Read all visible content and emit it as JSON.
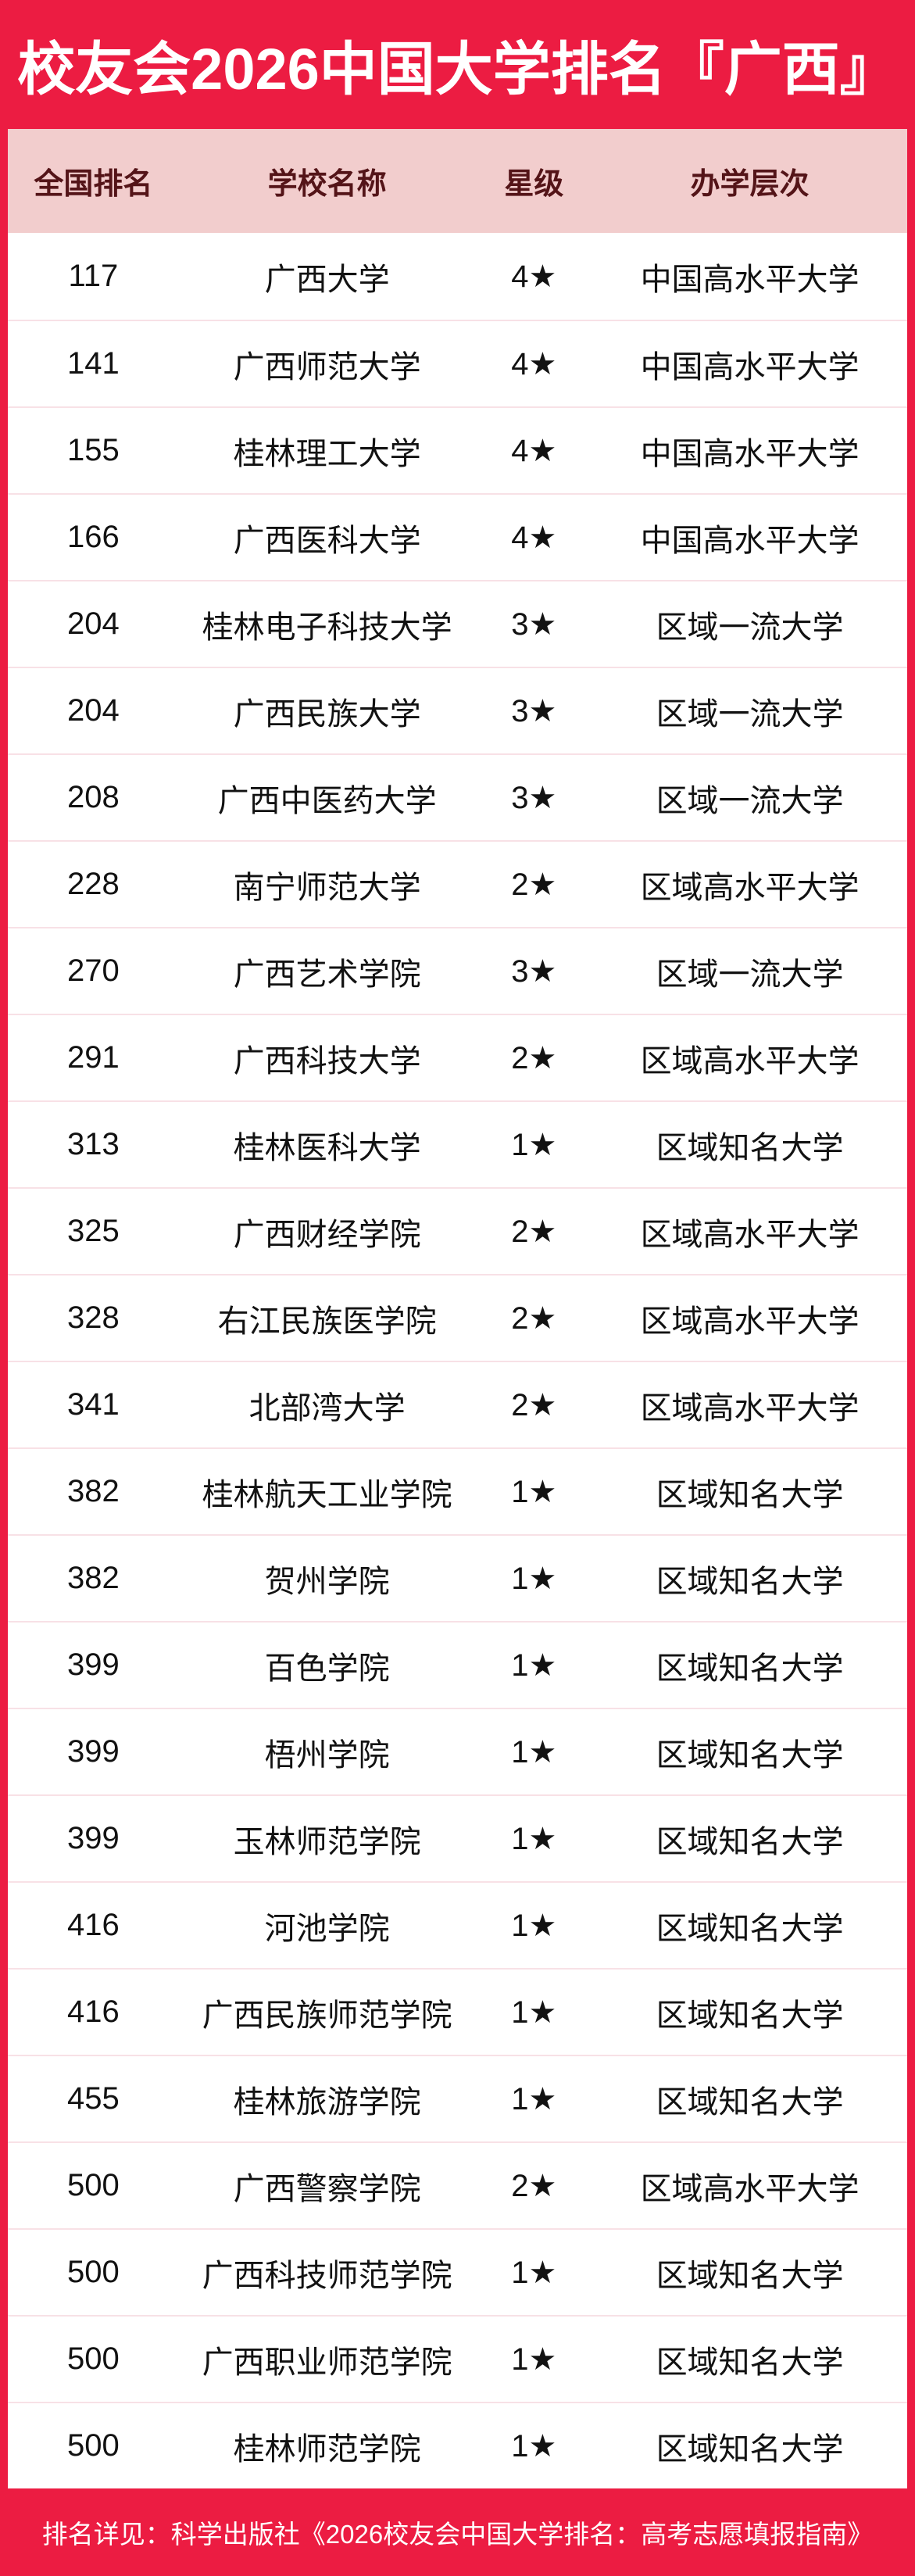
{
  "title": "校友会2026中国大学排名『广西』",
  "colors": {
    "red": "#EC1C42",
    "header_bg": "#F2CDCD",
    "header_text": "#541418",
    "divider": "#F8E1E6",
    "body_text": "#121212"
  },
  "table": {
    "columns": [
      "全国排名",
      "学校名称",
      "星级",
      "办学层次"
    ],
    "rows": [
      {
        "rank": "117",
        "name": "广西大学",
        "stars": "4★",
        "level": "中国高水平大学"
      },
      {
        "rank": "141",
        "name": "广西师范大学",
        "stars": "4★",
        "level": "中国高水平大学"
      },
      {
        "rank": "155",
        "name": "桂林理工大学",
        "stars": "4★",
        "level": "中国高水平大学"
      },
      {
        "rank": "166",
        "name": "广西医科大学",
        "stars": "4★",
        "level": "中国高水平大学"
      },
      {
        "rank": "204",
        "name": "桂林电子科技大学",
        "stars": "3★",
        "level": "区域一流大学"
      },
      {
        "rank": "204",
        "name": "广西民族大学",
        "stars": "3★",
        "level": "区域一流大学"
      },
      {
        "rank": "208",
        "name": "广西中医药大学",
        "stars": "3★",
        "level": "区域一流大学"
      },
      {
        "rank": "228",
        "name": "南宁师范大学",
        "stars": "2★",
        "level": "区域高水平大学"
      },
      {
        "rank": "270",
        "name": "广西艺术学院",
        "stars": "3★",
        "level": "区域一流大学"
      },
      {
        "rank": "291",
        "name": "广西科技大学",
        "stars": "2★",
        "level": "区域高水平大学"
      },
      {
        "rank": "313",
        "name": "桂林医科大学",
        "stars": "1★",
        "level": "区域知名大学"
      },
      {
        "rank": "325",
        "name": "广西财经学院",
        "stars": "2★",
        "level": "区域高水平大学"
      },
      {
        "rank": "328",
        "name": "右江民族医学院",
        "stars": "2★",
        "level": "区域高水平大学"
      },
      {
        "rank": "341",
        "name": "北部湾大学",
        "stars": "2★",
        "level": "区域高水平大学"
      },
      {
        "rank": "382",
        "name": "桂林航天工业学院",
        "stars": "1★",
        "level": "区域知名大学"
      },
      {
        "rank": "382",
        "name": "贺州学院",
        "stars": "1★",
        "level": "区域知名大学"
      },
      {
        "rank": "399",
        "name": "百色学院",
        "stars": "1★",
        "level": "区域知名大学"
      },
      {
        "rank": "399",
        "name": "梧州学院",
        "stars": "1★",
        "level": "区域知名大学"
      },
      {
        "rank": "399",
        "name": "玉林师范学院",
        "stars": "1★",
        "level": "区域知名大学"
      },
      {
        "rank": "416",
        "name": "河池学院",
        "stars": "1★",
        "level": "区域知名大学"
      },
      {
        "rank": "416",
        "name": "广西民族师范学院",
        "stars": "1★",
        "level": "区域知名大学"
      },
      {
        "rank": "455",
        "name": "桂林旅游学院",
        "stars": "1★",
        "level": "区域知名大学"
      },
      {
        "rank": "500",
        "name": "广西警察学院",
        "stars": "2★",
        "level": "区域高水平大学"
      },
      {
        "rank": "500",
        "name": "广西科技师范学院",
        "stars": "1★",
        "level": "区域知名大学"
      },
      {
        "rank": "500",
        "name": "广西职业师范学院",
        "stars": "1★",
        "level": "区域知名大学"
      },
      {
        "rank": "500",
        "name": "桂林师范学院",
        "stars": "1★",
        "level": "区域知名大学"
      }
    ]
  },
  "footer": {
    "note": "排名详见：科学出版社《2026校友会中国大学排名：高考志愿填报指南》"
  }
}
